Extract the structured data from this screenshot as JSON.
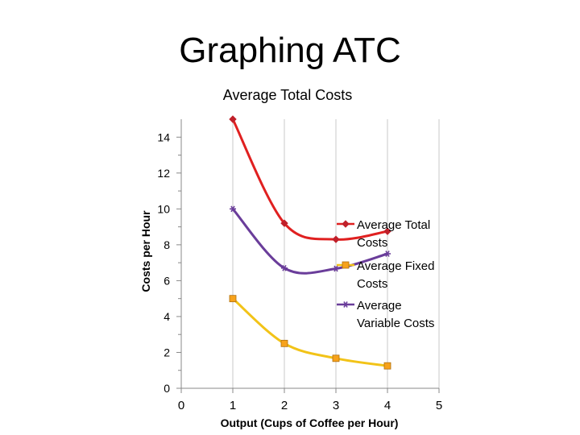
{
  "slide": {
    "title": "Graphing ATC"
  },
  "chart_data": {
    "type": "scatter",
    "title": "Average Total Costs",
    "xlabel": "Output (Cups of Coffee per Hour)",
    "ylabel": "Costs per Hour",
    "xlim": [
      0,
      5
    ],
    "ylim": [
      0,
      15
    ],
    "xticks": [
      0,
      1,
      2,
      3,
      4,
      5
    ],
    "yticks": [
      0,
      2,
      4,
      6,
      8,
      10,
      12,
      14
    ],
    "legend_position": "right",
    "series": [
      {
        "name": "Average Total Costs",
        "legend_lines": [
          "Average Total",
          "Costs"
        ],
        "color": "#e02020",
        "marker": "diamond",
        "marker_color": "#c0202a",
        "x": [
          1,
          2,
          3,
          4
        ],
        "y": [
          15,
          9.2,
          8.3,
          8.75
        ]
      },
      {
        "name": "Average Fixed Costs",
        "legend_lines": [
          "Average Fixed",
          "Costs"
        ],
        "color": "#f2c318",
        "marker": "square",
        "marker_color": "#f7a21b",
        "x": [
          1,
          2,
          3,
          4
        ],
        "y": [
          5,
          2.5,
          1.67,
          1.25
        ]
      },
      {
        "name": "Average Variable Costs",
        "legend_lines": [
          "Average",
          "Variable Costs"
        ],
        "color": "#6a3d9a",
        "marker": "star",
        "marker_color": "#6a3d9a",
        "x": [
          1,
          2,
          3,
          4
        ],
        "y": [
          10,
          6.7,
          6.67,
          7.5
        ]
      }
    ]
  }
}
